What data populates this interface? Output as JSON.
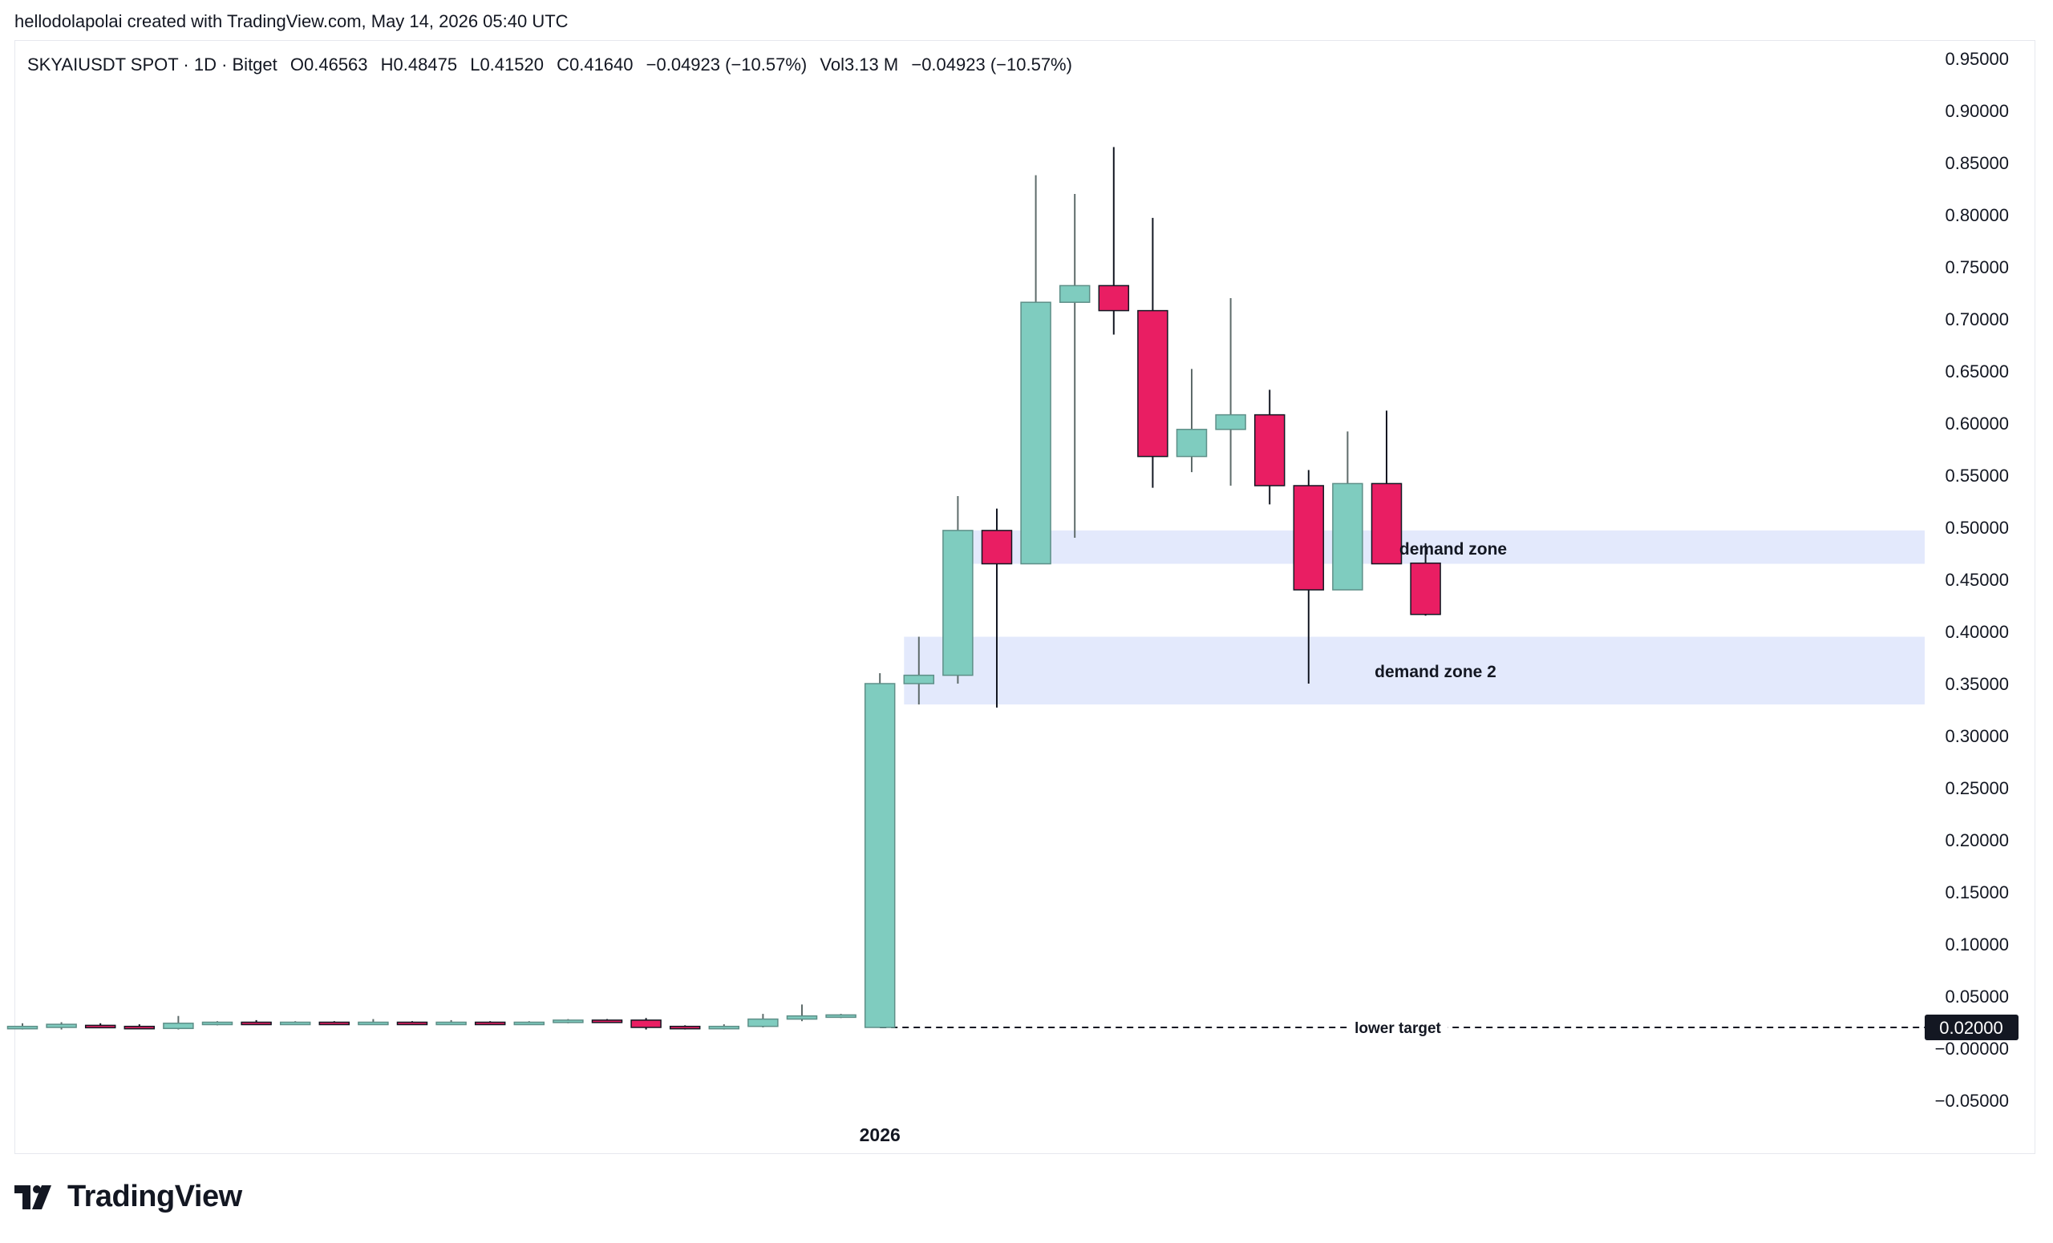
{
  "header": {
    "attribution": "hellodolapolai created with TradingView.com, May 14, 2026 05:40 UTC"
  },
  "legend": {
    "symbol": "SKYAIUSDT SPOT · 1D · Bitget",
    "open": "O0.46563",
    "high": "H0.48475",
    "low": "L0.41520",
    "close": "C0.41640",
    "change": "−0.04923 (−10.57%)",
    "volume": "Vol3.13 M",
    "change2": "−0.04923 (−10.57%)"
  },
  "footer": {
    "logo_text": "TradingView"
  },
  "colors": {
    "up": "#7fccbf",
    "down": "#e91e63",
    "zone": "#dce4fb",
    "text": "#131722"
  },
  "chart_data": {
    "type": "candlestick",
    "y_axis": {
      "range": [
        -0.07,
        0.97
      ],
      "ticks": [
        0.95,
        0.9,
        0.85,
        0.8,
        0.75,
        0.7,
        0.65,
        0.6,
        0.55,
        0.5,
        0.45,
        0.4,
        0.35,
        0.3,
        0.25,
        0.2,
        0.15,
        0.1,
        0.05,
        0.0,
        -0.05
      ],
      "tick_labels": [
        "0.95000",
        "0.90000",
        "0.85000",
        "0.80000",
        "0.75000",
        "0.70000",
        "0.65000",
        "0.60000",
        "0.55000",
        "0.50000",
        "0.45000",
        "0.40000",
        "0.35000",
        "0.30000",
        "0.25000",
        "0.20000",
        "0.15000",
        "0.10000",
        "0.05000",
        "−0.00000",
        "−0.05000"
      ],
      "current_price_label": "0.02000",
      "current_price": 0.02
    },
    "x_axis": {
      "label": "2026",
      "label_index": 22
    },
    "candles": [
      {
        "o": 0.02,
        "h": 0.024,
        "l": 0.018,
        "c": 0.021
      },
      {
        "o": 0.02,
        "h": 0.025,
        "l": 0.018,
        "c": 0.023
      },
      {
        "o": 0.022,
        "h": 0.024,
        "l": 0.02,
        "c": 0.021
      },
      {
        "o": 0.021,
        "h": 0.023,
        "l": 0.019,
        "c": 0.02
      },
      {
        "o": 0.019,
        "h": 0.031,
        "l": 0.018,
        "c": 0.024
      },
      {
        "o": 0.024,
        "h": 0.026,
        "l": 0.022,
        "c": 0.025
      },
      {
        "o": 0.025,
        "h": 0.027,
        "l": 0.023,
        "c": 0.024
      },
      {
        "o": 0.024,
        "h": 0.026,
        "l": 0.023,
        "c": 0.025
      },
      {
        "o": 0.025,
        "h": 0.026,
        "l": 0.023,
        "c": 0.024
      },
      {
        "o": 0.024,
        "h": 0.028,
        "l": 0.023,
        "c": 0.025
      },
      {
        "o": 0.025,
        "h": 0.026,
        "l": 0.023,
        "c": 0.024
      },
      {
        "o": 0.024,
        "h": 0.027,
        "l": 0.023,
        "c": 0.025
      },
      {
        "o": 0.025,
        "h": 0.026,
        "l": 0.023,
        "c": 0.024
      },
      {
        "o": 0.024,
        "h": 0.026,
        "l": 0.023,
        "c": 0.025
      },
      {
        "o": 0.025,
        "h": 0.028,
        "l": 0.024,
        "c": 0.027
      },
      {
        "o": 0.027,
        "h": 0.028,
        "l": 0.025,
        "c": 0.026
      },
      {
        "o": 0.027,
        "h": 0.029,
        "l": 0.018,
        "c": 0.02
      },
      {
        "o": 0.021,
        "h": 0.022,
        "l": 0.018,
        "c": 0.019
      },
      {
        "o": 0.019,
        "h": 0.023,
        "l": 0.018,
        "c": 0.021
      },
      {
        "o": 0.021,
        "h": 0.033,
        "l": 0.02,
        "c": 0.028
      },
      {
        "o": 0.028,
        "h": 0.042,
        "l": 0.026,
        "c": 0.031
      },
      {
        "o": 0.031,
        "h": 0.033,
        "l": 0.029,
        "c": 0.032
      },
      {
        "o": 0.02,
        "h": 0.36,
        "l": 0.02,
        "c": 0.35
      },
      {
        "o": 0.35,
        "h": 0.395,
        "l": 0.33,
        "c": 0.358
      },
      {
        "o": 0.358,
        "h": 0.53,
        "l": 0.35,
        "c": 0.497
      },
      {
        "o": 0.497,
        "h": 0.518,
        "l": 0.327,
        "c": 0.465
      },
      {
        "o": 0.465,
        "h": 0.838,
        "l": 0.465,
        "c": 0.716
      },
      {
        "o": 0.716,
        "h": 0.82,
        "l": 0.49,
        "c": 0.732
      },
      {
        "o": 0.732,
        "h": 0.865,
        "l": 0.685,
        "c": 0.708
      },
      {
        "o": 0.708,
        "h": 0.797,
        "l": 0.538,
        "c": 0.568
      },
      {
        "o": 0.568,
        "h": 0.652,
        "l": 0.553,
        "c": 0.594
      },
      {
        "o": 0.594,
        "h": 0.72,
        "l": 0.54,
        "c": 0.608
      },
      {
        "o": 0.608,
        "h": 0.632,
        "l": 0.522,
        "c": 0.54
      },
      {
        "o": 0.54,
        "h": 0.555,
        "l": 0.35,
        "c": 0.44
      },
      {
        "o": 0.44,
        "h": 0.592,
        "l": 0.44,
        "c": 0.542
      },
      {
        "o": 0.542,
        "h": 0.612,
        "l": 0.465,
        "c": 0.465
      },
      {
        "o": 0.46563,
        "h": 0.48475,
        "l": 0.4152,
        "c": 0.4164
      }
    ],
    "zones": [
      {
        "label": "demand zone",
        "top": 0.497,
        "bottom": 0.465,
        "start_index": 24
      },
      {
        "label": "demand zone 2",
        "top": 0.395,
        "bottom": 0.33,
        "start_index": 23
      }
    ],
    "lines": [
      {
        "label": "lower target",
        "value": 0.02,
        "start_index": 22,
        "style": "dashed"
      }
    ]
  }
}
